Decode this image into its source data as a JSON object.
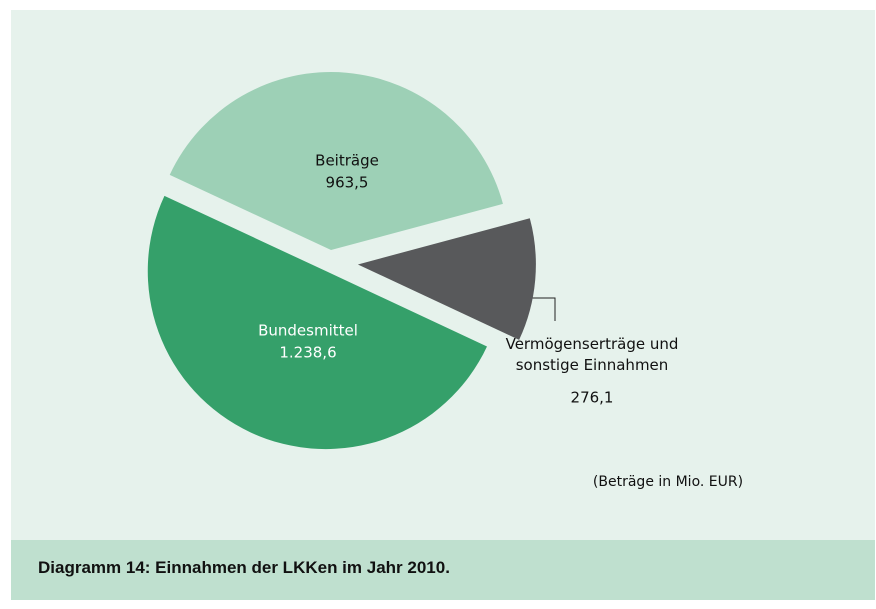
{
  "chart_data": {
    "type": "pie",
    "title": "Diagramm 14: Einnahmen der LKKen im Jahr 2010.",
    "note": "(Beträge in Mio. EUR)",
    "categories": [
      "Beiträge",
      "Vermögenserträge und sonstige Einnahmen",
      "Bundesmittel"
    ],
    "values": [
      963.5,
      276.1,
      1238.6
    ],
    "value_labels": [
      "963,5",
      "276,1",
      "1.238,6"
    ],
    "colors": [
      "#9dd0b6",
      "#58595b",
      "#35a06a"
    ]
  }
}
